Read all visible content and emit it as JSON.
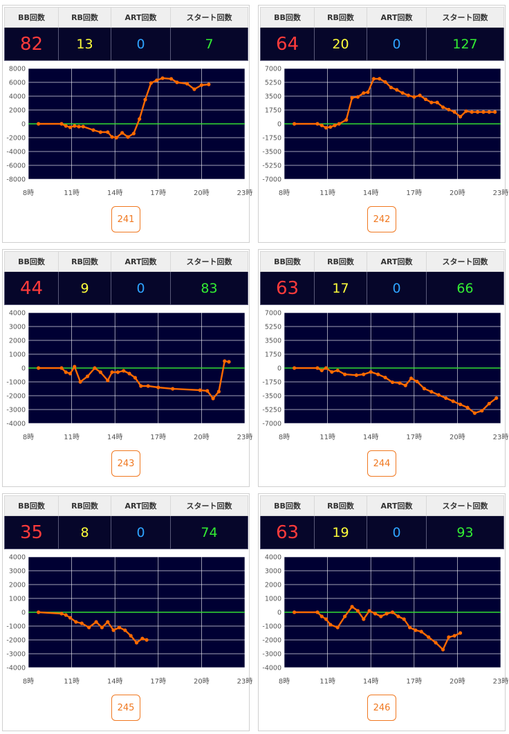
{
  "headers": {
    "bb": "BB回数",
    "rb": "RB回数",
    "art": "ART回数",
    "start": "スタート回数"
  },
  "colors": {
    "plot_bg": "#000033",
    "zero_line": "#33dd33",
    "line": "#ff6a00",
    "grid": "#ffffff"
  },
  "cards": [
    {
      "stats": {
        "bb": "82",
        "rb": "13",
        "art": "0",
        "start": "7"
      },
      "machine": "241"
    },
    {
      "stats": {
        "bb": "64",
        "rb": "20",
        "art": "0",
        "start": "127"
      },
      "machine": "242"
    },
    {
      "stats": {
        "bb": "44",
        "rb": "9",
        "art": "0",
        "start": "83"
      },
      "machine": "243"
    },
    {
      "stats": {
        "bb": "63",
        "rb": "17",
        "art": "0",
        "start": "66"
      },
      "machine": "244"
    },
    {
      "stats": {
        "bb": "35",
        "rb": "8",
        "art": "0",
        "start": "74"
      },
      "machine": "245"
    },
    {
      "stats": {
        "bb": "63",
        "rb": "19",
        "art": "0",
        "start": "93"
      },
      "machine": "246"
    }
  ],
  "chart_data": [
    {
      "type": "line",
      "x_ticks": [
        "8時",
        "11時",
        "14時",
        "17時",
        "20時",
        "23時"
      ],
      "xlim": [
        8,
        23
      ],
      "ylim": [
        -8000,
        8000
      ],
      "y_ticks": [
        "8000",
        "6000",
        "4000",
        "2000",
        "0",
        "-2000",
        "-4000",
        "-6000",
        "-8000"
      ],
      "series": [
        {
          "x": [
            8.7,
            10.3,
            10.6,
            10.9,
            11.2,
            11.5,
            11.8,
            12.5,
            13.0,
            13.5,
            13.8,
            14.1,
            14.5,
            14.9,
            15.3,
            15.7,
            16.1,
            16.5,
            16.9,
            17.3,
            17.9,
            18.3,
            19.0,
            19.5,
            20.0,
            20.5
          ],
          "y": [
            0,
            0,
            -300,
            -500,
            -300,
            -400,
            -400,
            -900,
            -1200,
            -1200,
            -1900,
            -2000,
            -1300,
            -1900,
            -1400,
            700,
            3500,
            5900,
            6300,
            6600,
            6500,
            6000,
            5800,
            5000,
            5600,
            5700
          ]
        }
      ]
    },
    {
      "type": "line",
      "x_ticks": [
        "8時",
        "11時",
        "14時",
        "17時",
        "20時",
        "23時"
      ],
      "xlim": [
        8,
        23
      ],
      "ylim": [
        -7000,
        7000
      ],
      "y_ticks": [
        "7000",
        "5250",
        "3500",
        "1750",
        "0",
        "-1750",
        "-3500",
        "-5250",
        "-7000"
      ],
      "series": [
        {
          "x": [
            8.7,
            10.3,
            10.6,
            10.9,
            11.2,
            11.5,
            11.8,
            12.3,
            12.7,
            13.1,
            13.5,
            13.8,
            14.2,
            14.6,
            15.0,
            15.4,
            15.8,
            16.2,
            16.6,
            17.0,
            17.4,
            17.8,
            18.2,
            18.6,
            19.0,
            19.4,
            19.8,
            20.2,
            20.6,
            21.0,
            21.4,
            21.8,
            22.2,
            22.6
          ],
          "y": [
            0,
            0,
            -200,
            -500,
            -400,
            -200,
            0,
            500,
            3300,
            3400,
            3900,
            4000,
            5700,
            5700,
            5300,
            4600,
            4300,
            3900,
            3600,
            3400,
            3600,
            3100,
            2700,
            2700,
            2100,
            1800,
            1500,
            900,
            1600,
            1500,
            1500,
            1500,
            1500,
            1500
          ]
        }
      ]
    },
    {
      "type": "line",
      "x_ticks": [
        "8時",
        "11時",
        "14時",
        "17時",
        "20時",
        "23時"
      ],
      "xlim": [
        8,
        23
      ],
      "ylim": [
        -4000,
        4000
      ],
      "y_ticks": [
        "4000",
        "3000",
        "2000",
        "1000",
        "0",
        "-1000",
        "-2000",
        "-3000",
        "-4000"
      ],
      "series": [
        {
          "x": [
            8.7,
            10.3,
            10.6,
            10.9,
            11.2,
            11.6,
            12.1,
            12.6,
            13.0,
            13.5,
            13.8,
            14.2,
            14.6,
            15.0,
            15.4,
            15.8,
            16.3,
            17.0,
            18.0,
            19.9,
            20.4,
            20.8,
            21.2,
            21.6,
            21.9
          ],
          "y": [
            0,
            0,
            -300,
            -400,
            100,
            -1000,
            -600,
            0,
            -300,
            -900,
            -300,
            -300,
            -200,
            -400,
            -700,
            -1300,
            -1300,
            -1400,
            -1500,
            -1600,
            -1650,
            -2200,
            -1700,
            500,
            450
          ]
        }
      ]
    },
    {
      "type": "line",
      "x_ticks": [
        "8時",
        "11時",
        "14時",
        "17時",
        "20時",
        "23時"
      ],
      "xlim": [
        8,
        23
      ],
      "ylim": [
        -7000,
        7000
      ],
      "y_ticks": [
        "7000",
        "5250",
        "3500",
        "1750",
        "0",
        "-1750",
        "-3500",
        "-5250",
        "-7000"
      ],
      "series": [
        {
          "x": [
            8.7,
            10.3,
            10.6,
            10.9,
            11.3,
            11.7,
            12.2,
            13.0,
            13.5,
            14.0,
            14.5,
            15.0,
            15.5,
            16.0,
            16.4,
            16.8,
            17.2,
            17.7,
            18.2,
            18.7,
            19.2,
            19.7,
            20.2,
            20.7,
            21.2,
            21.7,
            22.2,
            22.7
          ],
          "y": [
            0,
            0,
            -300,
            0,
            -500,
            -300,
            -800,
            -900,
            -800,
            -500,
            -800,
            -1200,
            -1800,
            -1900,
            -2200,
            -1300,
            -1700,
            -2600,
            -3000,
            -3400,
            -3800,
            -4200,
            -4600,
            -5000,
            -5700,
            -5400,
            -4500,
            -3800
          ]
        }
      ]
    },
    {
      "type": "line",
      "x_ticks": [
        "8時",
        "11時",
        "14時",
        "17時",
        "20時",
        "23時"
      ],
      "xlim": [
        8,
        23
      ],
      "ylim": [
        -4000,
        4000
      ],
      "y_ticks": [
        "4000",
        "3000",
        "2000",
        "1000",
        "0",
        "-1000",
        "-2000",
        "-3000",
        "-4000"
      ],
      "series": [
        {
          "x": [
            8.7,
            10.3,
            10.6,
            10.9,
            11.3,
            11.7,
            12.2,
            12.7,
            13.1,
            13.5,
            13.9,
            14.3,
            14.7,
            15.1,
            15.5,
            15.9,
            16.2
          ],
          "y": [
            0,
            -100,
            -200,
            -400,
            -700,
            -800,
            -1100,
            -700,
            -1100,
            -700,
            -1300,
            -1100,
            -1300,
            -1700,
            -2200,
            -1900,
            -2000
          ]
        }
      ]
    },
    {
      "type": "line",
      "x_ticks": [
        "8時",
        "11時",
        "14時",
        "17時",
        "20時",
        "23時"
      ],
      "xlim": [
        8,
        23
      ],
      "ylim": [
        -4000,
        4000
      ],
      "y_ticks": [
        "4000",
        "3000",
        "2000",
        "1000",
        "0",
        "-1000",
        "-2000",
        "-3000",
        "-4000"
      ],
      "series": [
        {
          "x": [
            8.7,
            10.3,
            10.6,
            10.9,
            11.2,
            11.7,
            12.2,
            12.7,
            13.1,
            13.5,
            13.9,
            14.3,
            14.7,
            15.1,
            15.5,
            15.9,
            16.3,
            16.7,
            17.1,
            17.5,
            18.0,
            18.5,
            19.0,
            19.4,
            19.8,
            20.2
          ],
          "y": [
            0,
            0,
            -300,
            -500,
            -900,
            -1100,
            -300,
            400,
            100,
            -500,
            100,
            -100,
            -300,
            -100,
            0,
            -300,
            -500,
            -1100,
            -1300,
            -1400,
            -1800,
            -2200,
            -2700,
            -1800,
            -1700,
            -1500
          ]
        }
      ]
    }
  ]
}
